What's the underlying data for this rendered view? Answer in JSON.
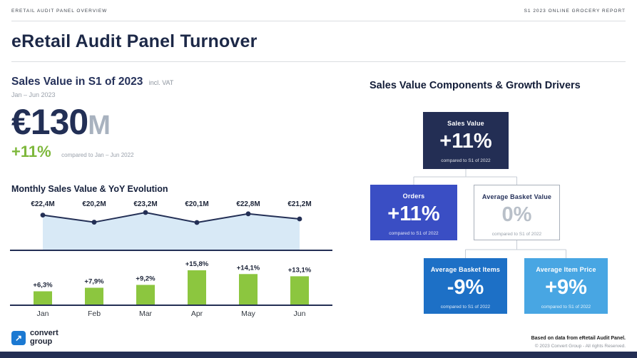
{
  "meta": {
    "header_left": "ERETAIL AUDIT PANEL OVERVIEW",
    "header_right": "S1 2023 ONLINE GROCERY REPORT",
    "title": "eRetail Audit Panel Turnover"
  },
  "kpi": {
    "heading": "Sales Value in S1 of 2023",
    "heading_suffix": "incl. VAT",
    "period": "Jan – Jun 2023",
    "value_main": "€130",
    "value_unit": "M",
    "growth": "+11%",
    "growth_caption": "compared to Jan – Jun 2022"
  },
  "chart": {
    "title": "Monthly Sales Value & YoY Evolution"
  },
  "chart_data": {
    "type": "combo",
    "categories": [
      "Jan",
      "Feb",
      "Mar",
      "Apr",
      "May",
      "Jun"
    ],
    "series": [
      {
        "name": "Monthly Sales Value (€M)",
        "type": "area-line",
        "values": [
          22.4,
          20.2,
          23.2,
          20.1,
          22.8,
          21.2
        ],
        "labels": [
          "€22,4M",
          "€20,2M",
          "€23,2M",
          "€20,1M",
          "€22,8M",
          "€21,2M"
        ]
      },
      {
        "name": "YoY Evolution (%)",
        "type": "bar",
        "values": [
          6.3,
          7.9,
          9.2,
          15.8,
          14.1,
          13.1
        ],
        "labels": [
          "+6,3%",
          "+7,9%",
          "+9,2%",
          "+15,8%",
          "+14,1%",
          "+13,1%"
        ]
      }
    ],
    "colors": {
      "line": "#232f55",
      "area": "#d8e9f6",
      "bar": "#8cc63f"
    },
    "grid": false,
    "legend": "none"
  },
  "drivers": {
    "heading": "Sales Value Components & Growth Drivers",
    "nodes": {
      "sales_value": {
        "label": "Sales Value",
        "value": "+11%",
        "caption": "compared to S1 of 2022",
        "bg": "#232e54"
      },
      "orders": {
        "label": "Orders",
        "value": "+11%",
        "caption": "compared to S1 of 2022",
        "bg": "#3a4ec4"
      },
      "avg_basket_value": {
        "label": "Average Basket Value",
        "value": "0%",
        "caption": "compared to S1 of 2022"
      },
      "avg_basket_items": {
        "label": "Average Basket Items",
        "value": "-9%",
        "caption": "compared to S1 of 2022",
        "bg": "#1d70c6"
      },
      "avg_item_price": {
        "label": "Average Item Price",
        "value": "+9%",
        "caption": "compared to S1 of 2022",
        "bg": "#48a6e3"
      }
    }
  },
  "logo": {
    "icon_glyph": "↗",
    "line1": "convert",
    "line2": "group"
  },
  "footnote": {
    "line1": "Based on data from eRetail Audit Panel.",
    "line2": "© 2023 Convert Group - All rights Reserved."
  }
}
